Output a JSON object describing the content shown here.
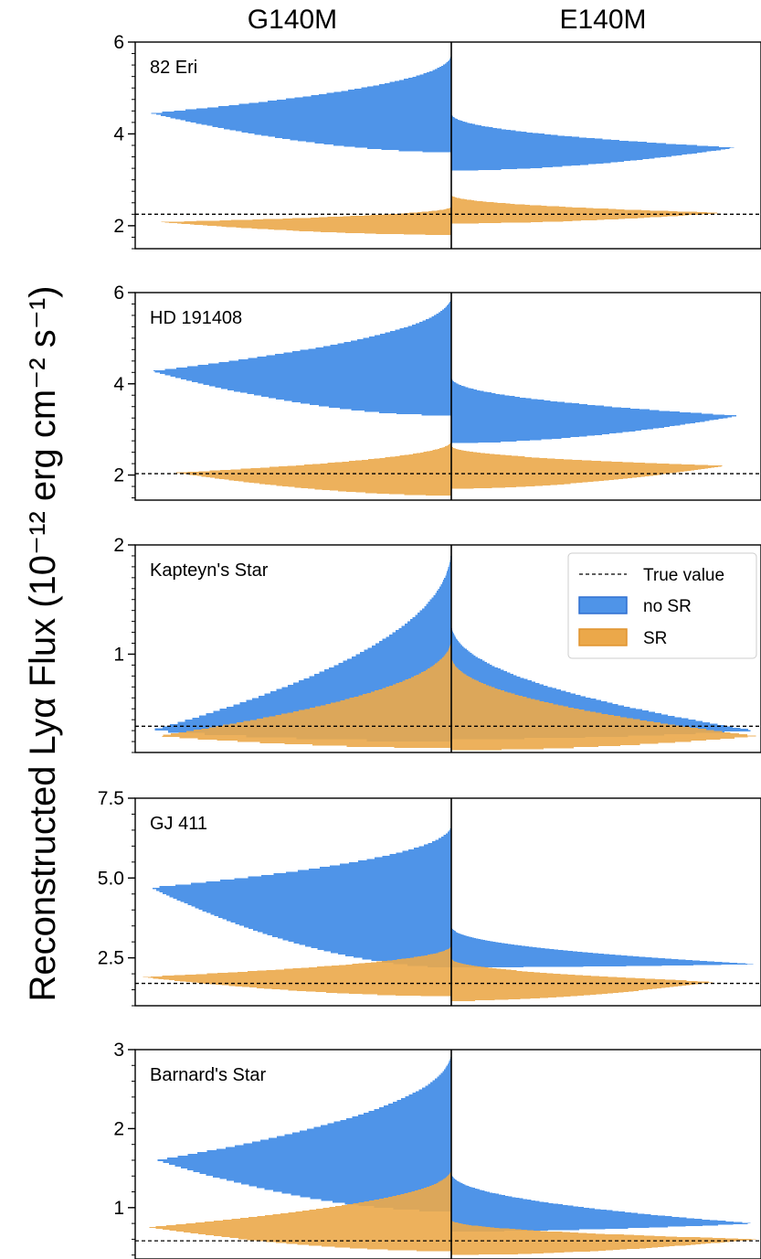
{
  "figure": {
    "column_titles": [
      "G140M",
      "E140M"
    ],
    "ylabel": "Reconstructed Lyα Flux (10⁻¹² erg cm⁻² s⁻¹)",
    "colors": {
      "no_sr": "#4f94e8",
      "no_sr_edge": "#2f6fd0",
      "sr": "#eba84a",
      "sr_edge": "#e0932e",
      "overlap": "#b0874a"
    }
  },
  "legend": {
    "placement": "upper-right of third panel (right column)",
    "items": [
      {
        "key": "true",
        "label": "True value",
        "style": "dashed-line"
      },
      {
        "key": "nosr",
        "label": "no SR",
        "color": "#4f94e8"
      },
      {
        "key": "sr",
        "label": "SR",
        "color": "#eba84a"
      }
    ]
  },
  "chart_data": [
    {
      "type": "violin-histogram",
      "star": "82 Eri",
      "ylim": [
        1.5,
        6.0
      ],
      "yticks": [
        2,
        4,
        6
      ],
      "ytick_labels": [
        "2",
        "4",
        "6"
      ],
      "minor_step": 0.25,
      "true_value": 2.25,
      "series": [
        {
          "name": "no SR",
          "side": "G140M",
          "min": 3.6,
          "peak": 4.45,
          "max": 5.75,
          "width": 0.95
        },
        {
          "name": "no SR",
          "side": "E140M",
          "min": 3.2,
          "peak": 3.7,
          "max": 4.45,
          "width": 0.92
        },
        {
          "name": "SR",
          "side": "G140M",
          "min": 1.8,
          "peak": 2.08,
          "max": 2.42,
          "width": 0.92
        },
        {
          "name": "SR",
          "side": "E140M",
          "min": 2.05,
          "peak": 2.28,
          "max": 2.68,
          "width": 0.88
        }
      ]
    },
    {
      "type": "violin-histogram",
      "star": "HD 191408",
      "ylim": [
        1.45,
        6.0
      ],
      "yticks": [
        2,
        4,
        6
      ],
      "ytick_labels": [
        "2",
        "4",
        "6"
      ],
      "minor_step": 0.25,
      "true_value": 2.03,
      "series": [
        {
          "name": "no SR",
          "side": "G140M",
          "min": 3.3,
          "peak": 4.28,
          "max": 5.95,
          "width": 0.95
        },
        {
          "name": "no SR",
          "side": "E140M",
          "min": 2.7,
          "peak": 3.3,
          "max": 4.15,
          "width": 0.93
        },
        {
          "name": "SR",
          "side": "G140M",
          "min": 1.55,
          "peak": 2.05,
          "max": 2.75,
          "width": 0.87
        },
        {
          "name": "SR",
          "side": "E140M",
          "min": 1.7,
          "peak": 2.2,
          "max": 2.65,
          "width": 0.88
        }
      ]
    },
    {
      "type": "violin-histogram",
      "star": "Kapteyn's Star",
      "ylim": [
        0.1,
        2.0
      ],
      "yticks": [
        1,
        2
      ],
      "ytick_labels": [
        "1",
        "2"
      ],
      "minor_step": 0.1,
      "true_value": 0.34,
      "series": [
        {
          "name": "no SR",
          "side": "G140M",
          "min": 0.2,
          "peak": 0.3,
          "max": 2.0,
          "width": 0.95
        },
        {
          "name": "no SR",
          "side": "E140M",
          "min": 0.22,
          "peak": 0.3,
          "max": 1.3,
          "width": 0.98
        },
        {
          "name": "SR",
          "side": "G140M",
          "min": 0.14,
          "peak": 0.25,
          "max": 1.15,
          "width": 0.93
        },
        {
          "name": "SR",
          "side": "E140M",
          "min": 0.12,
          "peak": 0.25,
          "max": 1.0,
          "width": 0.99
        }
      ]
    },
    {
      "type": "violin-histogram",
      "star": "GJ 411",
      "ylim": [
        1.0,
        7.5
      ],
      "yticks": [
        2.5,
        5.0,
        7.5
      ],
      "ytick_labels": [
        "2.5",
        "5.0",
        "7.5"
      ],
      "minor_step": 0.5,
      "true_value": 1.7,
      "series": [
        {
          "name": "no SR",
          "side": "G140M",
          "min": 2.2,
          "peak": 4.7,
          "max": 6.7,
          "width": 0.95
        },
        {
          "name": "no SR",
          "side": "E140M",
          "min": 2.2,
          "peak": 2.3,
          "max": 3.5,
          "width": 0.99
        },
        {
          "name": "SR",
          "side": "G140M",
          "min": 1.3,
          "peak": 1.9,
          "max": 2.9,
          "width": 0.98
        },
        {
          "name": "SR",
          "side": "E140M",
          "min": 1.15,
          "peak": 1.75,
          "max": 2.5,
          "width": 0.85
        }
      ]
    },
    {
      "type": "violin-histogram",
      "star": "Barnard's Star",
      "ylim": [
        0.35,
        3.0
      ],
      "yticks": [
        1,
        2,
        3
      ],
      "ytick_labels": [
        "1",
        "2",
        "3"
      ],
      "minor_step": 0.2,
      "true_value": 0.58,
      "series": [
        {
          "name": "no SR",
          "side": "G140M",
          "min": 0.95,
          "peak": 1.6,
          "max": 3.0,
          "width": 0.93
        },
        {
          "name": "no SR",
          "side": "E140M",
          "min": 0.7,
          "peak": 0.8,
          "max": 1.45,
          "width": 0.98
        },
        {
          "name": "SR",
          "side": "G140M",
          "min": 0.45,
          "peak": 0.75,
          "max": 1.5,
          "width": 0.96
        },
        {
          "name": "SR",
          "side": "E140M",
          "min": 0.4,
          "peak": 0.6,
          "max": 0.85,
          "width": 0.99
        }
      ]
    }
  ]
}
